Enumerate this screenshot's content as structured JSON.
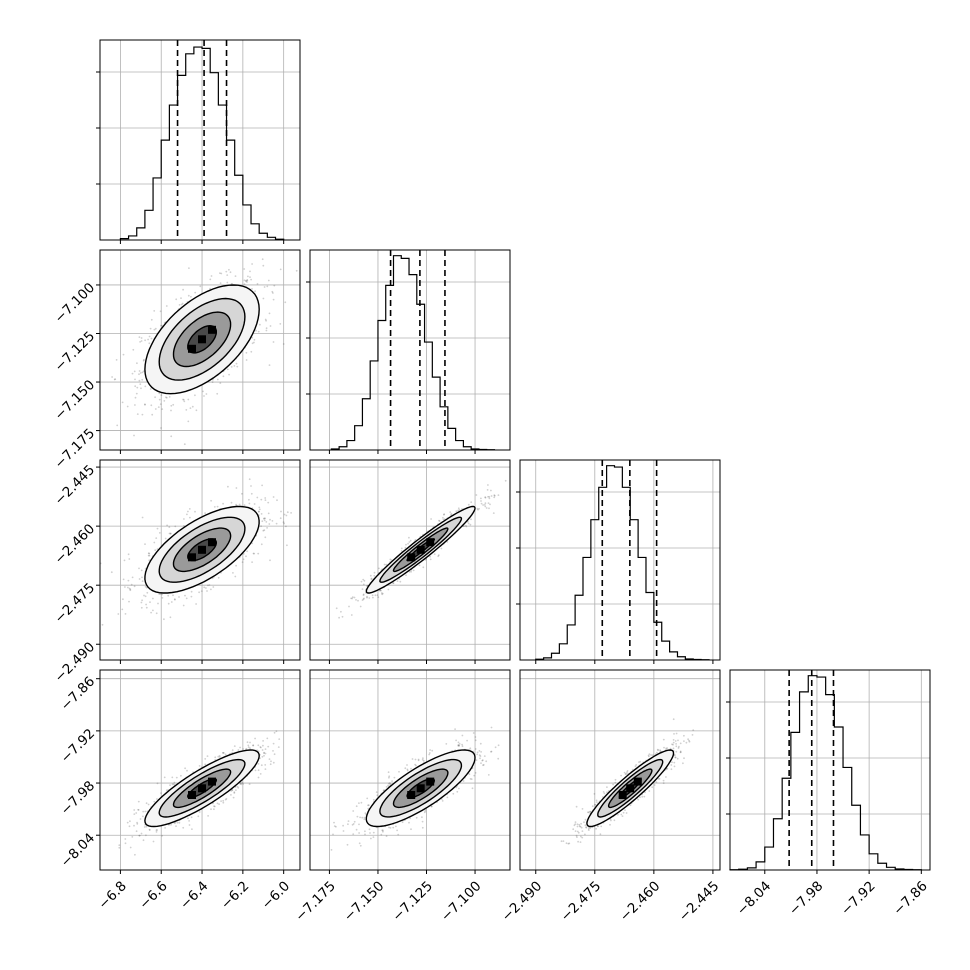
{
  "chart_data": {
    "type": "corner",
    "title": "",
    "grid": true,
    "parameters": [
      {
        "name": "",
        "range": [
          -6.9,
          -5.92
        ],
        "ticks": [
          -6.8,
          -6.6,
          -6.4,
          -6.2,
          -6.0
        ],
        "tick_labels": [
          "−6.8",
          "−6.6",
          "−6.4",
          "−6.2",
          "−6.0"
        ],
        "quantiles": [
          -6.52,
          -6.39,
          -6.28
        ],
        "histogram": {
          "bin_edges": [
            -6.8,
            -6.76,
            -6.72,
            -6.68,
            -6.64,
            -6.6,
            -6.56,
            -6.52,
            -6.48,
            -6.44,
            -6.4,
            -6.36,
            -6.32,
            -6.28,
            -6.24,
            -6.2,
            -6.16,
            -6.12,
            -6.08,
            -6.04,
            -6.0
          ],
          "counts": [
            5,
            15,
            45,
            110,
            230,
            370,
            500,
            610,
            690,
            715,
            710,
            620,
            500,
            370,
            240,
            130,
            60,
            25,
            10,
            3
          ],
          "max": 730
        }
      },
      {
        "name": "",
        "range": [
          -7.185,
          -7.082
        ],
        "ticks": [
          -7.175,
          -7.15,
          -7.125,
          -7.1
        ],
        "tick_labels": [
          "−7.175",
          "−7.150",
          "−7.125",
          "−7.100"
        ],
        "quantiles": [
          -7.1435,
          -7.1284,
          -7.1155
        ],
        "histogram": {
          "bin_edges": [
            -7.174,
            -7.17,
            -7.166,
            -7.162,
            -7.158,
            -7.154,
            -7.15,
            -7.146,
            -7.142,
            -7.138,
            -7.134,
            -7.13,
            -7.126,
            -7.122,
            -7.118,
            -7.114,
            -7.11,
            -7.106,
            -7.102,
            -7.098,
            -7.094,
            -7.09
          ],
          "counts": [
            4,
            12,
            35,
            90,
            190,
            330,
            480,
            610,
            720,
            710,
            650,
            540,
            400,
            270,
            160,
            80,
            35,
            12,
            4,
            2,
            1
          ],
          "max": 730
        }
      },
      {
        "name": "",
        "range": [
          -2.494,
          -2.4432
        ],
        "ticks": [
          -2.49,
          -2.475,
          -2.46,
          -2.445
        ],
        "tick_labels": [
          "−2.490",
          "−2.475",
          "−2.460",
          "−2.445"
        ],
        "quantiles": [
          -2.4731,
          -2.4661,
          -2.4593
        ],
        "histogram": {
          "bin_edges": [
            -2.49,
            -2.488,
            -2.486,
            -2.484,
            -2.482,
            -2.48,
            -2.478,
            -2.476,
            -2.474,
            -2.472,
            -2.47,
            -2.468,
            -2.466,
            -2.464,
            -2.462,
            -2.46,
            -2.458,
            -2.456,
            -2.454,
            -2.452,
            -2.45,
            -2.448,
            -2.446
          ],
          "counts": [
            3,
            8,
            25,
            60,
            130,
            240,
            380,
            520,
            640,
            720,
            715,
            640,
            520,
            380,
            250,
            140,
            70,
            30,
            12,
            4,
            2,
            1
          ],
          "max": 730
        }
      },
      {
        "name": "",
        "range": [
          -8.08,
          -7.85
        ],
        "ticks": [
          -8.04,
          -7.98,
          -7.92,
          -7.86
        ],
        "tick_labels": [
          "−8.04",
          "−7.98",
          "−7.92",
          "−7.86"
        ],
        "quantiles": [
          -8.012,
          -7.986,
          -7.961
        ],
        "histogram": {
          "bin_edges": [
            -8.08,
            -8.07,
            -8.06,
            -8.05,
            -8.04,
            -8.03,
            -8.02,
            -8.01,
            -8.0,
            -7.99,
            -7.98,
            -7.97,
            -7.96,
            -7.95,
            -7.94,
            -7.93,
            -7.92,
            -7.91,
            -7.9,
            -7.89,
            -7.88,
            -7.87,
            -7.86
          ],
          "counts": [
            1,
            3,
            8,
            30,
            85,
            190,
            340,
            510,
            660,
            720,
            715,
            650,
            530,
            380,
            240,
            130,
            60,
            25,
            10,
            4,
            2,
            1
          ],
          "max": 730
        }
      }
    ],
    "pairs": [
      {
        "x": 0,
        "y": 1,
        "center": [
          -6.4,
          -7.128
        ],
        "sigma": [
          0.14,
          0.014
        ],
        "rho": 0.55
      },
      {
        "x": 0,
        "y": 2,
        "center": [
          -6.4,
          -2.466
        ],
        "sigma": [
          0.14,
          0.0055
        ],
        "rho": 0.65
      },
      {
        "x": 1,
        "y": 2,
        "center": [
          -7.128,
          -2.466
        ],
        "sigma": [
          0.014,
          0.0055
        ],
        "rho": 0.96
      },
      {
        "x": 0,
        "y": 3,
        "center": [
          -6.4,
          -7.986
        ],
        "sigma": [
          0.14,
          0.022
        ],
        "rho": 0.85
      },
      {
        "x": 1,
        "y": 3,
        "center": [
          -7.128,
          -7.986
        ],
        "sigma": [
          0.014,
          0.022
        ],
        "rho": 0.8
      },
      {
        "x": 2,
        "y": 3,
        "center": [
          -2.466,
          -7.986
        ],
        "sigma": [
          0.0055,
          0.022
        ],
        "rho": 0.92
      }
    ],
    "contour_levels_sigma": [
      0.5,
      1.0,
      1.5,
      2.0
    ]
  }
}
